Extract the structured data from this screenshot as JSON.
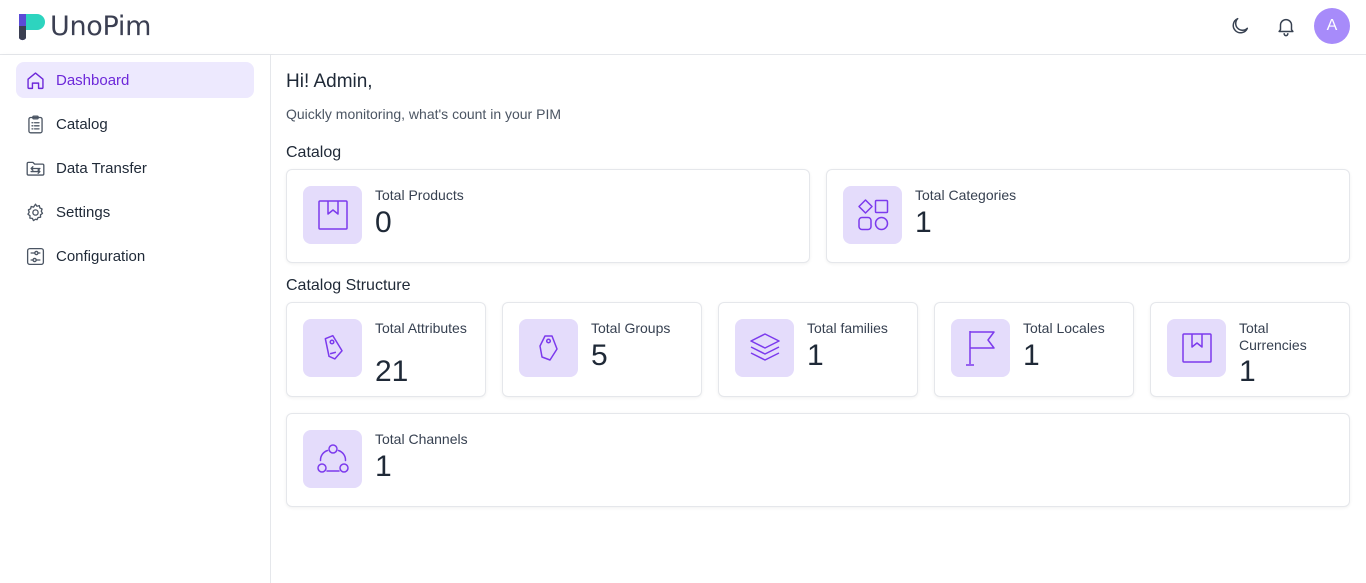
{
  "app": {
    "name": "UnoPim"
  },
  "header": {
    "theme_icon": "moon-icon",
    "notification_icon": "bell-icon",
    "avatar_initial": "A"
  },
  "sidebar": {
    "items": [
      {
        "label": "Dashboard",
        "icon": "home-icon",
        "active": true
      },
      {
        "label": "Catalog",
        "icon": "clipboard-icon",
        "active": false
      },
      {
        "label": "Data Transfer",
        "icon": "folder-transfer-icon",
        "active": false
      },
      {
        "label": "Settings",
        "icon": "gear-icon",
        "active": false
      },
      {
        "label": "Configuration",
        "icon": "sliders-icon",
        "active": false
      }
    ]
  },
  "main": {
    "greeting": "Hi! Admin,",
    "subtitle": "Quickly monitoring, what's count in your PIM",
    "catalog_title": "Catalog",
    "structure_title": "Catalog Structure",
    "catalog_cards": [
      {
        "label": "Total Products",
        "value": "0",
        "icon": "bookmark-box-icon"
      },
      {
        "label": "Total Categories",
        "value": "1",
        "icon": "shapes-icon"
      }
    ],
    "structure_cards": [
      {
        "label": "Total Attributes",
        "value": "21",
        "icon": "tag-icon"
      },
      {
        "label": "Total Groups",
        "value": "5",
        "icon": "tag-icon"
      },
      {
        "label": "Total families",
        "value": "1",
        "icon": "layers-icon"
      },
      {
        "label": "Total Locales",
        "value": "1",
        "icon": "flag-icon"
      },
      {
        "label": "Total Currencies",
        "value": "1",
        "icon": "bookmark-box-icon"
      }
    ],
    "channels_card": {
      "label": "Total Channels",
      "value": "1",
      "icon": "network-icon"
    }
  },
  "colors": {
    "accent": "#6d28d9",
    "icon_stroke": "#7c3aed",
    "icon_bg": "#e4dcfb",
    "active_bg": "#ede9fe",
    "avatar": "#a78bfa"
  }
}
